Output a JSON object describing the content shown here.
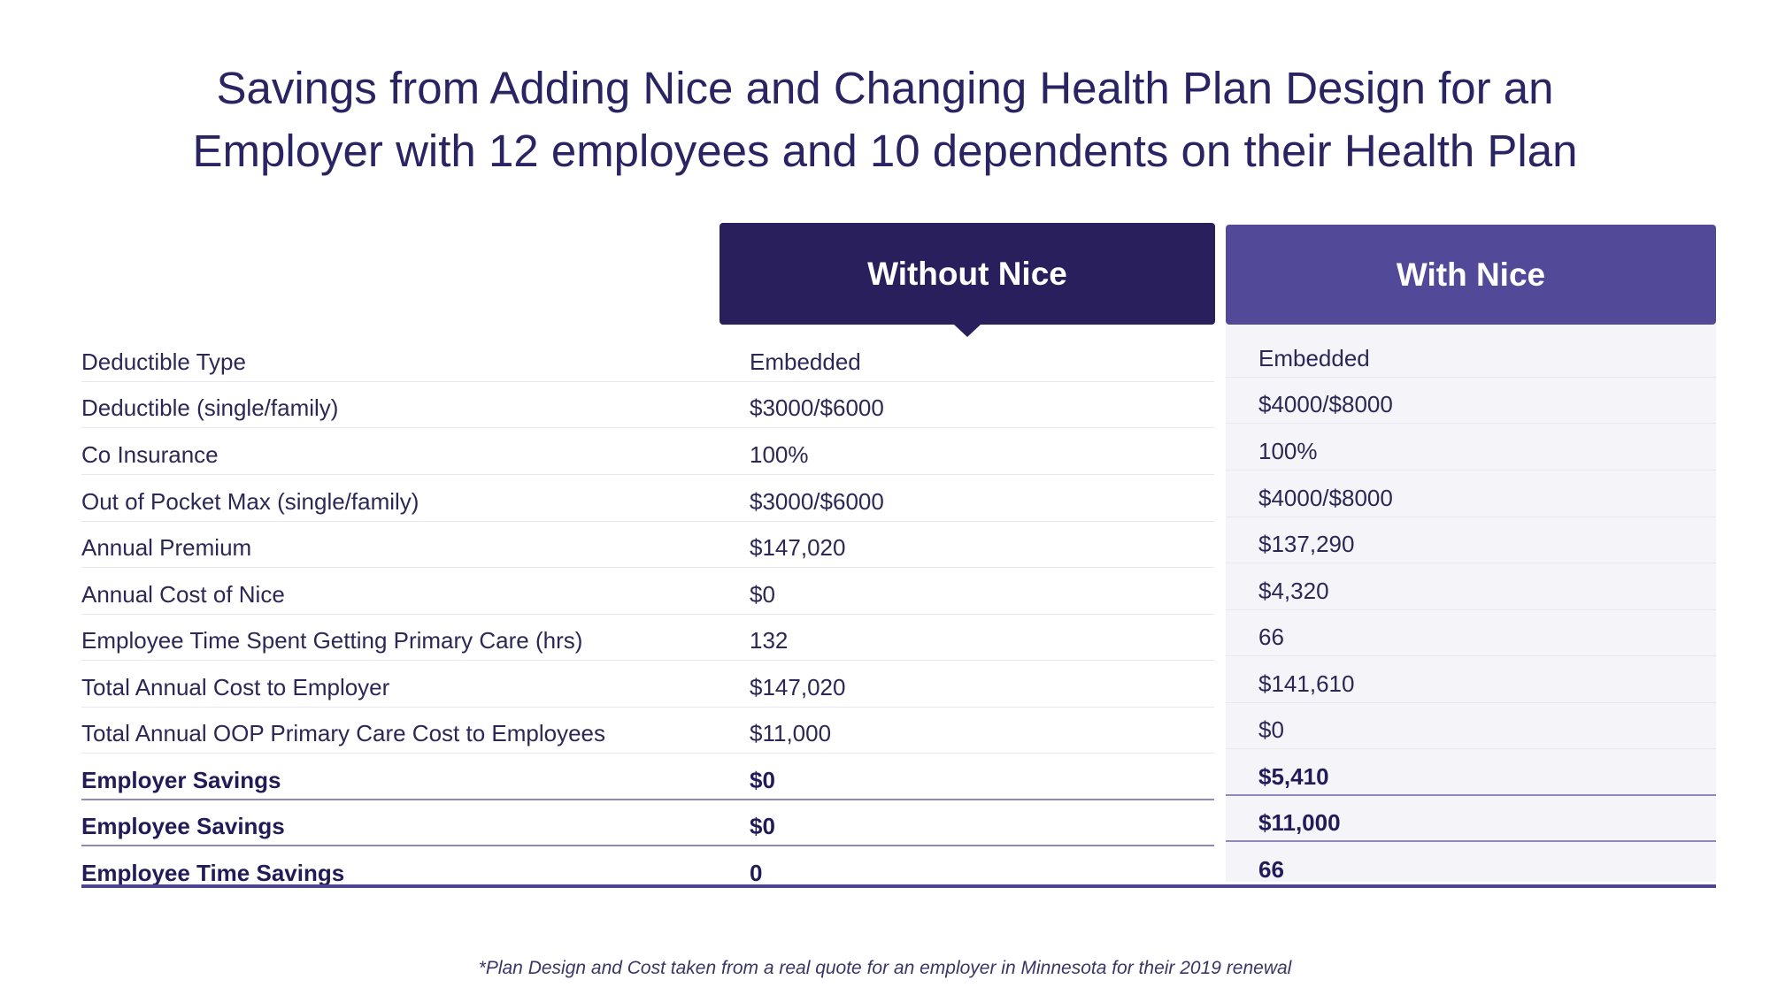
{
  "title": {
    "line1": "Savings from Adding Nice and Changing Health Plan Design for an",
    "line2": "Employer with 12 employees and 10 dependents on their Health Plan"
  },
  "columns": {
    "without": "Without Nice",
    "with": "With Nice"
  },
  "rows": [
    {
      "label": "Deductible Type",
      "without": "Embedded",
      "with": "Embedded"
    },
    {
      "label": "Deductible (single/family)",
      "without": "$3000/$6000",
      "with": "$4000/$8000"
    },
    {
      "label": "Co Insurance",
      "without": "100%",
      "with": "100%"
    },
    {
      "label": "Out of Pocket Max (single/family)",
      "without": "$3000/$6000",
      "with": "$4000/$8000"
    },
    {
      "label": "Annual Premium",
      "without": "$147,020",
      "with": "$137,290"
    },
    {
      "label": "Annual Cost of Nice",
      "without": "$0",
      "with": "$4,320"
    },
    {
      "label": "Employee Time Spent Getting Primary Care (hrs)",
      "without": "132",
      "with": "66"
    },
    {
      "label": "Total Annual Cost to Employer",
      "without": "$147,020",
      "with": "$141,610"
    },
    {
      "label": "Total Annual OOP Primary Care Cost to Employees",
      "without": "$11,000",
      "with": "$0"
    },
    {
      "label": "Employer Savings",
      "without": "$0",
      "with": "$5,410"
    },
    {
      "label": "Employee Savings",
      "without": "$0",
      "with": "$11,000"
    },
    {
      "label": "Employee Time Savings",
      "without": "0",
      "with": "66"
    }
  ],
  "footnote": "*Plan Design and Cost taken from a real quote for an employer in Minnesota for their 2019 renewal",
  "colors": {
    "without_header": "#281f5c",
    "with_header": "#524a98",
    "with_column_bg": "#f4f4f9"
  }
}
